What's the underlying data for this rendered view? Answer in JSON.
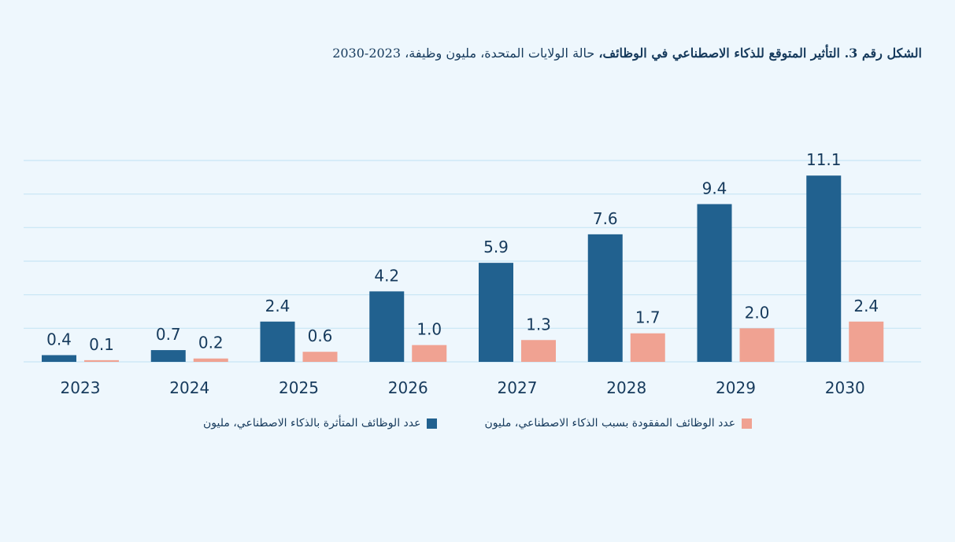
{
  "title": {
    "bold": "الشكل رقم 3. التأثير المتوقع للذكاء الاصطناعي في الوظائف،",
    "normal": " حالة الولايات المتحدة، مليون وظيفة، 2023-2030"
  },
  "colors": {
    "affected": "#21618f",
    "lost": "#f0a292",
    "background": "#eef7fd",
    "grid": "#c7e6f5",
    "text": "#163a5c"
  },
  "chart_data": {
    "type": "bar",
    "title": "الشكل رقم 3. التأثير المتوقع للذكاء الاصطناعي في الوظائف، حالة الولايات المتحدة، مليون وظيفة، 2023-2030",
    "xlabel": "",
    "ylabel": "",
    "ylim": [
      0,
      12
    ],
    "grid": true,
    "grid_step": 2,
    "legend_position": "bottom",
    "categories": [
      "2023",
      "2024",
      "2025",
      "2026",
      "2027",
      "2028",
      "2029",
      "2030"
    ],
    "series": [
      {
        "name": "عدد الوظائف المتأثرة بالذكاء الاصطناعي، مليون",
        "color": "#21618f",
        "values": [
          0.4,
          0.7,
          2.4,
          4.2,
          5.9,
          7.6,
          9.4,
          11.1
        ]
      },
      {
        "name": "عدد الوظائف المفقودة بسبب الذكاء الاصطناعي، مليون",
        "color": "#f0a292",
        "values": [
          0.1,
          0.2,
          0.6,
          1.0,
          1.3,
          1.7,
          2.0,
          2.4
        ]
      }
    ]
  }
}
